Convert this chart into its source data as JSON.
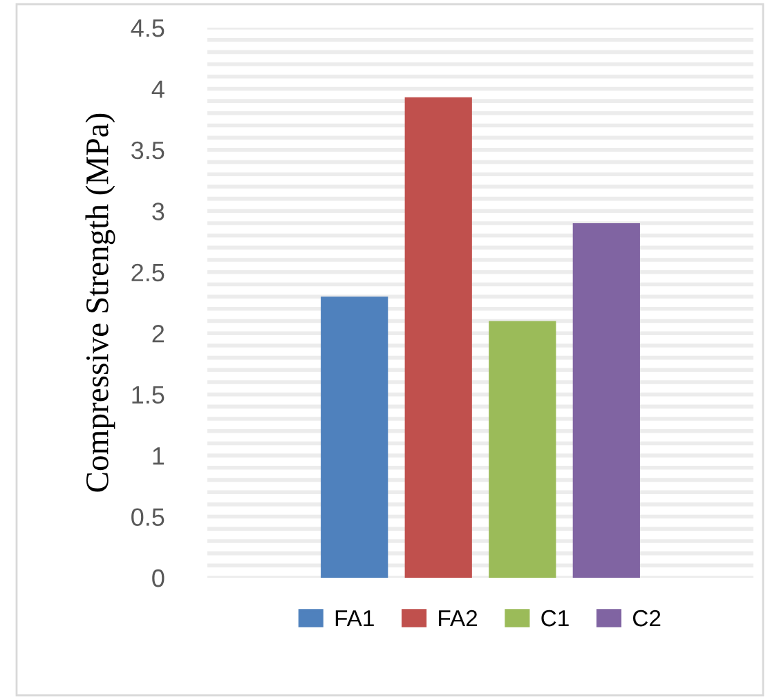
{
  "chart_data": {
    "type": "bar",
    "ylabel": "Compressive Strength (MPa)",
    "categories": [
      null
    ],
    "series": [
      {
        "name": "FA1",
        "color": "#4f81bd",
        "values": [
          2.3
        ]
      },
      {
        "name": "FA2",
        "color": "#c0504d",
        "values": [
          3.93
        ]
      },
      {
        "name": "C1",
        "color": "#9bbb59",
        "values": [
          2.1
        ]
      },
      {
        "name": "C2",
        "color": "#8064a2",
        "values": [
          2.9
        ]
      }
    ],
    "ylim": [
      0,
      4.5
    ],
    "yticks": [
      0,
      {
        "value": 0.1,
        "label": null
      },
      {
        "value": 0.2,
        "label": null
      },
      {
        "value": 0.3,
        "label": null
      },
      {
        "value": 0.4,
        "label": null
      },
      0.5,
      {
        "value": 0.6,
        "label": null
      },
      {
        "value": 0.7,
        "label": null
      },
      {
        "value": 0.8,
        "label": null
      },
      {
        "value": 0.9,
        "label": null
      },
      1,
      {
        "value": 1.1,
        "label": null
      },
      {
        "value": 1.2,
        "label": null
      },
      {
        "value": 1.3,
        "label": null
      },
      {
        "value": 1.4,
        "label": null
      },
      1.5,
      {
        "value": 1.6,
        "label": null
      },
      {
        "value": 1.7,
        "label": null
      },
      {
        "value": 1.8,
        "label": null
      },
      {
        "value": 1.9,
        "label": null
      },
      2,
      {
        "value": 2.1,
        "label": null
      },
      {
        "value": 2.2,
        "label": null
      },
      {
        "value": 2.3,
        "label": null
      },
      {
        "value": 2.4,
        "label": null
      },
      2.5,
      {
        "value": 2.6,
        "label": null
      },
      {
        "value": 2.7,
        "label": null
      },
      {
        "value": 2.8,
        "label": null
      },
      {
        "value": 2.9,
        "label": null
      },
      3,
      {
        "value": 3.1,
        "label": null
      },
      {
        "value": 3.2,
        "label": null
      },
      {
        "value": 3.3,
        "label": null
      },
      {
        "value": 3.4,
        "label": null
      },
      3.5,
      {
        "value": 3.6,
        "label": null
      },
      {
        "value": 3.7,
        "label": null
      },
      {
        "value": 3.8,
        "label": null
      },
      {
        "value": 3.9,
        "label": null
      },
      4,
      {
        "value": 4.1,
        "label": null
      },
      {
        "value": 4.2,
        "label": null
      },
      {
        "value": 4.3,
        "label": null
      },
      {
        "value": 4.4,
        "label": null
      },
      4.5
    ],
    "grid": "y",
    "legend": "bottom"
  }
}
